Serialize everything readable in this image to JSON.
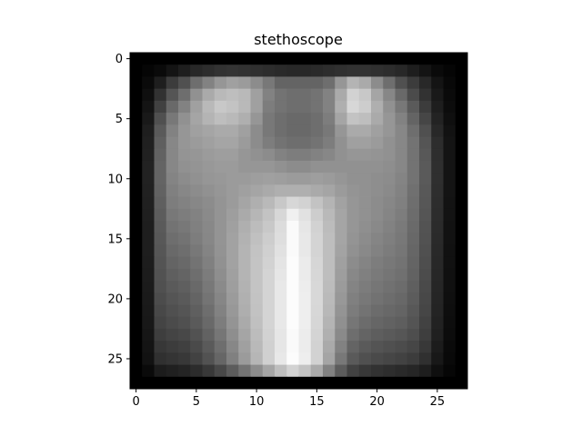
{
  "chart_data": {
    "type": "heatmap",
    "title": "stethoscope",
    "xlabel": "",
    "ylabel": "",
    "colormap": "gray",
    "x_ticks": [
      0,
      5,
      10,
      15,
      20,
      25
    ],
    "y_ticks": [
      0,
      5,
      10,
      15,
      20,
      25
    ],
    "xlim": [
      -0.5,
      27.5
    ],
    "ylim": [
      27.5,
      -0.5
    ],
    "grid": false,
    "value_range": [
      0,
      255
    ],
    "matrix": [
      [
        0,
        0,
        0,
        0,
        0,
        0,
        0,
        0,
        0,
        0,
        0,
        0,
        0,
        0,
        0,
        0,
        0,
        0,
        0,
        0,
        0,
        0,
        0,
        0,
        0,
        0,
        0,
        0
      ],
      [
        0,
        5,
        10,
        20,
        30,
        40,
        45,
        50,
        52,
        50,
        48,
        45,
        42,
        40,
        40,
        42,
        45,
        48,
        50,
        50,
        48,
        45,
        40,
        30,
        20,
        10,
        5,
        0
      ],
      [
        0,
        10,
        30,
        60,
        80,
        110,
        130,
        150,
        160,
        155,
        140,
        120,
        100,
        100,
        100,
        100,
        110,
        150,
        180,
        170,
        140,
        110,
        80,
        60,
        40,
        20,
        8,
        0
      ],
      [
        0,
        15,
        50,
        85,
        110,
        145,
        170,
        185,
        190,
        185,
        160,
        130,
        115,
        110,
        110,
        115,
        130,
        170,
        210,
        200,
        165,
        135,
        105,
        75,
        50,
        25,
        10,
        0
      ],
      [
        0,
        20,
        65,
        105,
        130,
        160,
        185,
        200,
        195,
        185,
        160,
        125,
        115,
        110,
        110,
        115,
        130,
        175,
        215,
        205,
        175,
        145,
        120,
        90,
        60,
        30,
        12,
        0
      ],
      [
        0,
        25,
        80,
        120,
        145,
        165,
        180,
        190,
        185,
        175,
        150,
        120,
        110,
        105,
        105,
        110,
        125,
        165,
        195,
        190,
        170,
        150,
        130,
        100,
        70,
        35,
        15,
        0
      ],
      [
        0,
        30,
        90,
        130,
        150,
        160,
        165,
        170,
        170,
        160,
        140,
        120,
        110,
        105,
        105,
        110,
        120,
        150,
        170,
        170,
        160,
        150,
        135,
        110,
        80,
        40,
        18,
        0
      ],
      [
        0,
        32,
        95,
        135,
        150,
        155,
        160,
        165,
        165,
        155,
        140,
        125,
        115,
        110,
        110,
        115,
        125,
        145,
        160,
        160,
        155,
        145,
        135,
        115,
        85,
        45,
        20,
        0
      ],
      [
        0,
        33,
        98,
        135,
        148,
        150,
        155,
        158,
        158,
        150,
        145,
        140,
        130,
        125,
        125,
        130,
        135,
        145,
        150,
        150,
        148,
        145,
        135,
        115,
        88,
        46,
        20,
        0
      ],
      [
        0,
        34,
        100,
        135,
        145,
        148,
        152,
        155,
        155,
        150,
        150,
        150,
        145,
        140,
        140,
        145,
        145,
        145,
        145,
        145,
        145,
        142,
        135,
        115,
        90,
        47,
        20,
        0
      ],
      [
        0,
        34,
        100,
        132,
        140,
        145,
        150,
        152,
        155,
        155,
        158,
        160,
        158,
        155,
        155,
        158,
        155,
        150,
        145,
        145,
        142,
        140,
        132,
        115,
        90,
        47,
        20,
        0
      ],
      [
        0,
        33,
        98,
        128,
        135,
        140,
        145,
        150,
        155,
        160,
        165,
        170,
        175,
        175,
        175,
        170,
        165,
        155,
        148,
        145,
        142,
        138,
        130,
        112,
        88,
        46,
        20,
        0
      ],
      [
        0,
        32,
        95,
        125,
        130,
        135,
        140,
        148,
        155,
        165,
        175,
        185,
        200,
        215,
        210,
        195,
        180,
        162,
        150,
        145,
        140,
        135,
        128,
        110,
        87,
        45,
        19,
        0
      ],
      [
        0,
        31,
        92,
        120,
        125,
        130,
        138,
        148,
        158,
        170,
        182,
        195,
        215,
        240,
        225,
        205,
        185,
        165,
        150,
        145,
        140,
        133,
        125,
        108,
        85,
        44,
        19,
        0
      ],
      [
        0,
        30,
        90,
        115,
        120,
        128,
        136,
        148,
        160,
        175,
        188,
        200,
        220,
        250,
        230,
        210,
        188,
        165,
        150,
        143,
        137,
        130,
        122,
        106,
        83,
        43,
        18,
        0
      ],
      [
        0,
        30,
        88,
        110,
        115,
        125,
        135,
        148,
        162,
        178,
        192,
        205,
        222,
        250,
        232,
        212,
        190,
        165,
        148,
        140,
        133,
        127,
        120,
        104,
        82,
        42,
        18,
        0
      ],
      [
        0,
        30,
        86,
        105,
        110,
        120,
        132,
        147,
        162,
        180,
        195,
        208,
        225,
        250,
        232,
        212,
        190,
        163,
        145,
        137,
        130,
        124,
        118,
        102,
        80,
        41,
        17,
        0
      ],
      [
        0,
        29,
        84,
        100,
        105,
        115,
        128,
        145,
        162,
        180,
        196,
        210,
        228,
        252,
        235,
        214,
        190,
        160,
        140,
        132,
        125,
        120,
        115,
        100,
        78,
        40,
        17,
        0
      ],
      [
        0,
        28,
        82,
        95,
        100,
        110,
        124,
        142,
        160,
        180,
        196,
        212,
        230,
        252,
        235,
        215,
        190,
        158,
        136,
        128,
        122,
        117,
        112,
        98,
        76,
        39,
        16,
        0
      ],
      [
        0,
        27,
        80,
        90,
        95,
        105,
        120,
        138,
        158,
        178,
        196,
        212,
        232,
        252,
        237,
        216,
        188,
        155,
        132,
        124,
        118,
        113,
        108,
        95,
        74,
        38,
        16,
        0
      ],
      [
        0,
        26,
        76,
        85,
        90,
        100,
        116,
        134,
        155,
        176,
        195,
        212,
        232,
        252,
        238,
        216,
        186,
        152,
        128,
        120,
        114,
        109,
        104,
        92,
        72,
        37,
        15,
        0
      ],
      [
        0,
        25,
        72,
        80,
        85,
        95,
        110,
        130,
        152,
        174,
        194,
        212,
        232,
        252,
        238,
        215,
        184,
        148,
        124,
        115,
        108,
        104,
        100,
        88,
        70,
        36,
        14,
        0
      ],
      [
        0,
        24,
        68,
        75,
        80,
        90,
        105,
        125,
        148,
        170,
        192,
        212,
        232,
        252,
        238,
        214,
        180,
        144,
        118,
        108,
        102,
        98,
        94,
        84,
        66,
        34,
        13,
        0
      ],
      [
        0,
        22,
        62,
        68,
        72,
        82,
        98,
        118,
        142,
        165,
        188,
        210,
        230,
        250,
        236,
        212,
        176,
        138,
        110,
        100,
        94,
        90,
        86,
        78,
        62,
        32,
        12,
        0
      ],
      [
        0,
        20,
        55,
        60,
        64,
        74,
        90,
        110,
        135,
        160,
        185,
        208,
        230,
        250,
        236,
        210,
        170,
        130,
        100,
        90,
        84,
        80,
        76,
        70,
        56,
        28,
        10,
        0
      ],
      [
        0,
        18,
        48,
        52,
        56,
        66,
        82,
        102,
        128,
        155,
        182,
        208,
        232,
        252,
        238,
        210,
        165,
        120,
        90,
        80,
        74,
        70,
        66,
        60,
        48,
        24,
        9,
        0
      ],
      [
        0,
        10,
        28,
        32,
        36,
        44,
        56,
        72,
        92,
        115,
        140,
        165,
        190,
        210,
        195,
        170,
        130,
        92,
        66,
        56,
        50,
        46,
        42,
        38,
        30,
        15,
        6,
        0
      ],
      [
        0,
        0,
        0,
        0,
        0,
        0,
        0,
        0,
        0,
        0,
        0,
        0,
        0,
        0,
        0,
        0,
        0,
        0,
        0,
        0,
        0,
        0,
        0,
        0,
        0,
        0,
        0,
        0
      ]
    ]
  }
}
